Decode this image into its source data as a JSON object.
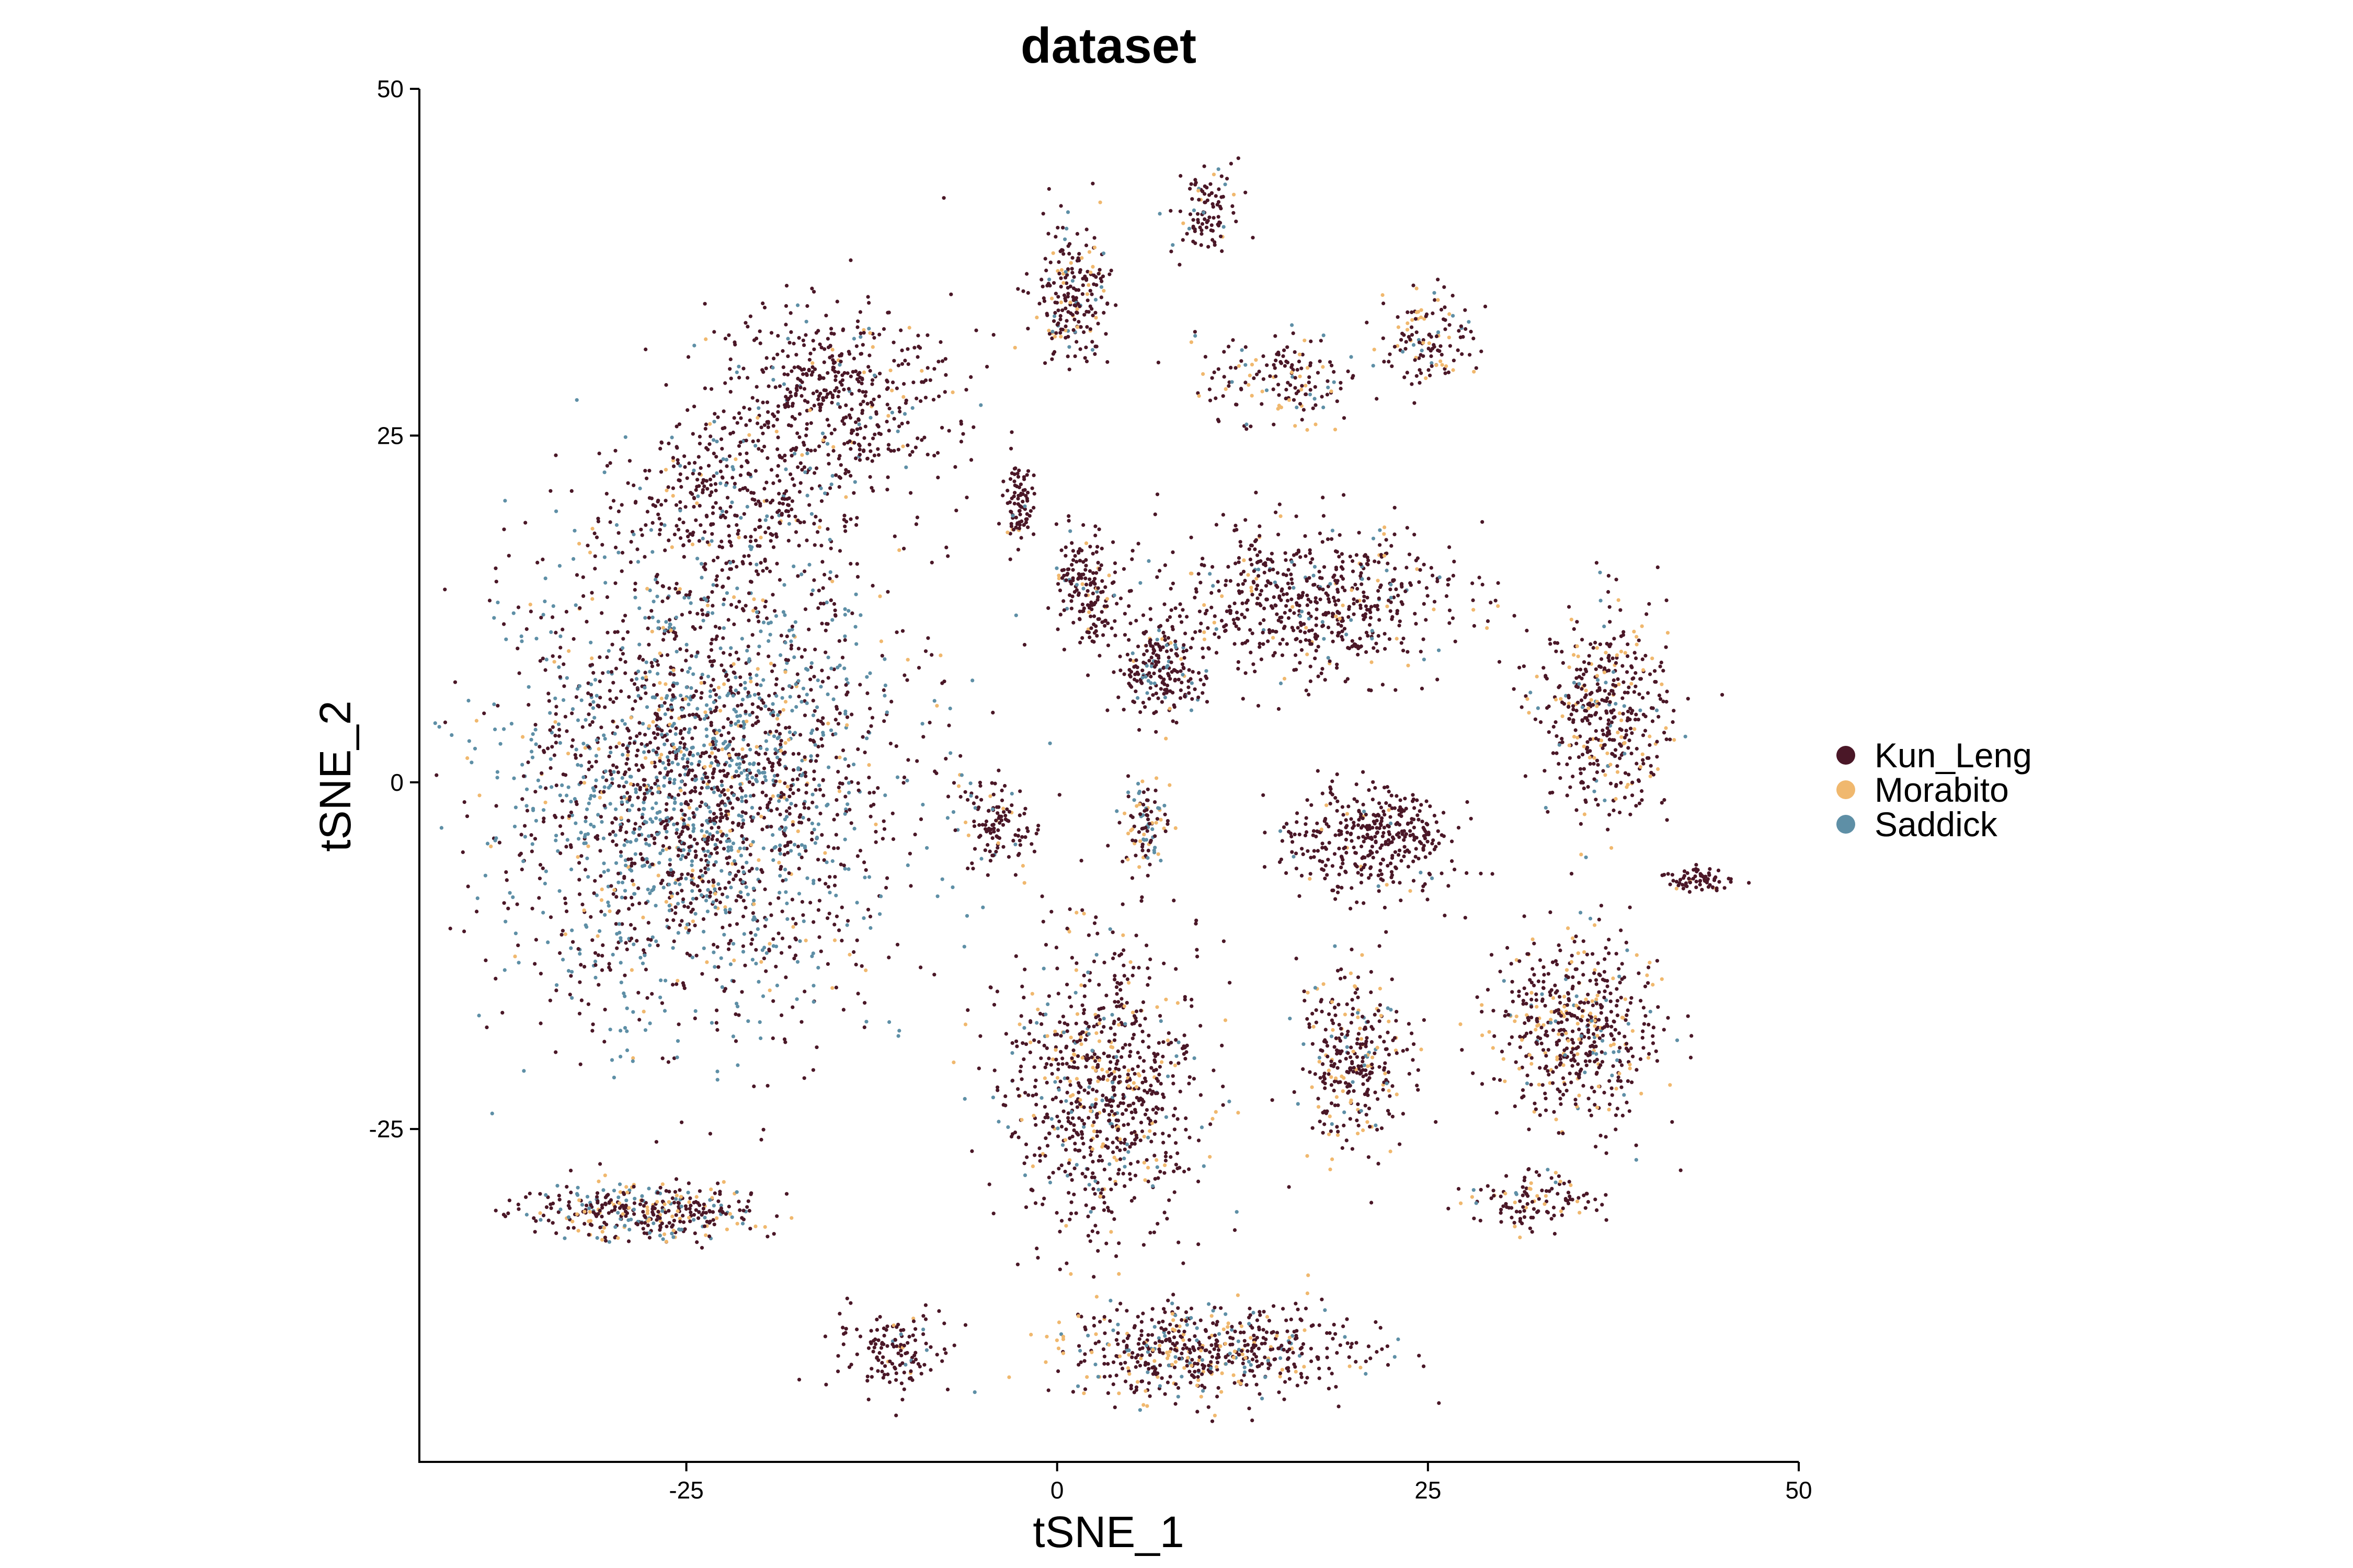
{
  "chart_data": {
    "type": "scatter",
    "title": "dataset",
    "xlabel": "tSNE_1",
    "ylabel": "tSNE_2",
    "xlim": [
      -43,
      50
    ],
    "ylim": [
      -49,
      50
    ],
    "xticks": [
      -25,
      0,
      25,
      50
    ],
    "yticks": [
      -25,
      0,
      25,
      50
    ],
    "xtick_labels": [
      "-25",
      "0",
      "25",
      "50"
    ],
    "ytick_labels": [
      "-25",
      "0",
      "25",
      "50"
    ],
    "grid": false,
    "legend_position": "right",
    "series": [
      {
        "name": "Kun_Leng",
        "color": "#4a1727"
      },
      {
        "name": "Morabito",
        "color": "#f0b86e"
      },
      {
        "name": "Saddick",
        "color": "#5e8fa6"
      }
    ],
    "clusters": [
      {
        "center": [
          -24,
          0
        ],
        "spread": [
          12,
          15
        ],
        "points": 2600,
        "mix": [
          0.55,
          0.07,
          0.38
        ]
      },
      {
        "center": [
          -15,
          28
        ],
        "spread": [
          7,
          6
        ],
        "points": 500,
        "mix": [
          0.9,
          0.04,
          0.06
        ]
      },
      {
        "center": [
          -22,
          20
        ],
        "spread": [
          8,
          6
        ],
        "points": 400,
        "mix": [
          0.85,
          0.05,
          0.1
        ]
      },
      {
        "center": [
          1,
          35
        ],
        "spread": [
          2.5,
          5
        ],
        "points": 220,
        "mix": [
          0.78,
          0.15,
          0.07
        ]
      },
      {
        "center": [
          10,
          41
        ],
        "spread": [
          2,
          2.5
        ],
        "points": 100,
        "mix": [
          0.8,
          0.12,
          0.08
        ]
      },
      {
        "center": [
          15,
          29
        ],
        "spread": [
          5,
          3
        ],
        "points": 160,
        "mix": [
          0.7,
          0.2,
          0.1
        ]
      },
      {
        "center": [
          25,
          32
        ],
        "spread": [
          3,
          3
        ],
        "points": 130,
        "mix": [
          0.65,
          0.25,
          0.1
        ]
      },
      {
        "center": [
          -2.5,
          20
        ],
        "spread": [
          1,
          3
        ],
        "points": 90,
        "mix": [
          0.95,
          0.03,
          0.02
        ]
      },
      {
        "center": [
          2,
          14
        ],
        "spread": [
          2,
          4
        ],
        "points": 180,
        "mix": [
          0.9,
          0.05,
          0.05
        ]
      },
      {
        "center": [
          17,
          13
        ],
        "spread": [
          9,
          5
        ],
        "points": 650,
        "mix": [
          0.88,
          0.06,
          0.06
        ]
      },
      {
        "center": [
          7,
          8
        ],
        "spread": [
          3,
          3
        ],
        "points": 200,
        "mix": [
          0.85,
          0.05,
          0.1
        ]
      },
      {
        "center": [
          21,
          -4
        ],
        "spread": [
          5,
          3.5
        ],
        "points": 380,
        "mix": [
          0.96,
          0.02,
          0.02
        ]
      },
      {
        "center": [
          37,
          5
        ],
        "spread": [
          4,
          7
        ],
        "points": 460,
        "mix": [
          0.75,
          0.18,
          0.07
        ]
      },
      {
        "center": [
          43,
          -7
        ],
        "spread": [
          2,
          0.8
        ],
        "points": 70,
        "mix": [
          0.95,
          0.03,
          0.02
        ]
      },
      {
        "center": [
          -4,
          -3
        ],
        "spread": [
          2,
          3
        ],
        "points": 120,
        "mix": [
          0.85,
          0.05,
          0.1
        ]
      },
      {
        "center": [
          6,
          -3
        ],
        "spread": [
          1.5,
          3
        ],
        "points": 100,
        "mix": [
          0.5,
          0.2,
          0.3
        ]
      },
      {
        "center": [
          3,
          -22
        ],
        "spread": [
          6,
          9
        ],
        "points": 850,
        "mix": [
          0.78,
          0.14,
          0.08
        ]
      },
      {
        "center": [
          -28,
          -31
        ],
        "spread": [
          7,
          1.8
        ],
        "points": 380,
        "mix": [
          0.6,
          0.18,
          0.22
        ]
      },
      {
        "center": [
          -11,
          -41
        ],
        "spread": [
          3.5,
          2.5
        ],
        "points": 140,
        "mix": [
          0.9,
          0.05,
          0.05
        ]
      },
      {
        "center": [
          10,
          -41
        ],
        "spread": [
          9,
          3
        ],
        "points": 600,
        "mix": [
          0.72,
          0.17,
          0.11
        ]
      },
      {
        "center": [
          20,
          -20
        ],
        "spread": [
          3.5,
          6
        ],
        "points": 330,
        "mix": [
          0.7,
          0.2,
          0.1
        ]
      },
      {
        "center": [
          35,
          -18
        ],
        "spread": [
          5,
          6
        ],
        "points": 550,
        "mix": [
          0.7,
          0.22,
          0.08
        ]
      },
      {
        "center": [
          32,
          -30
        ],
        "spread": [
          4,
          2
        ],
        "points": 120,
        "mix": [
          0.75,
          0.18,
          0.07
        ]
      }
    ]
  }
}
